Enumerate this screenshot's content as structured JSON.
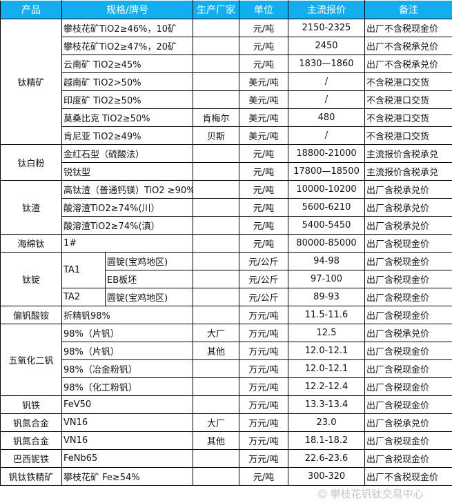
{
  "header": {
    "product": "产品",
    "spec": "规格/牌号",
    "maker": "生产厂家",
    "unit": "单位",
    "price": "主流报价",
    "note": "备注"
  },
  "groups": [
    {
      "product": "钛精矿",
      "items": [
        {
          "spec": "攀枝花矿TiO2≥46%，10矿",
          "maker": "",
          "unit": "元/吨",
          "price": "2150-2325",
          "note": "出厂不含税现金价"
        },
        {
          "spec": "攀枝花矿TiO2≥47%，20矿",
          "maker": "",
          "unit": "元/吨",
          "price": "2450",
          "note": "出厂不含税承兑价"
        },
        {
          "spec": "云南矿 TiO2≥45%",
          "maker": "",
          "unit": "元/吨",
          "price": "1830—1860",
          "note": "出厂不含税承兑价"
        },
        {
          "spec": "越南矿 TiO2>50%",
          "maker": "",
          "unit": "美元/吨",
          "price": "/",
          "note": "不含税港口交货"
        },
        {
          "spec": "印度矿 TiO2≥50%",
          "maker": "",
          "unit": "美元/吨",
          "price": "/",
          "note": "不含税港口交货"
        },
        {
          "spec": "莫桑比克 TiO2≥50%",
          "maker": "肯梅尔",
          "unit": "美元/吨",
          "price": "480",
          "note": "不含税港口交货"
        },
        {
          "spec": "肯尼亚 TiO2≥49%",
          "maker": "贝斯",
          "unit": "美元/吨",
          "price": "/",
          "note": "不含税港口交货"
        }
      ]
    },
    {
      "product": "钛白粉",
      "items": [
        {
          "spec": "金红石型（硫酸法）",
          "unit": "元/吨",
          "price": "18800-21000",
          "note": "主流报价含税承兑"
        },
        {
          "spec": "锐钛型",
          "unit": "元/吨",
          "price": "17800—18500",
          "note": "主流报价含税承兑"
        }
      ]
    },
    {
      "product": "钛渣",
      "items": [
        {
          "spec": "高钛渣（普通钙镁）TiO2 ≥90%",
          "unit": "元/吨",
          "price": "10000-10200",
          "note": "出厂含税承兑价"
        },
        {
          "spec": "酸溶渣TiO2≥74%(川）",
          "unit": "元/吨",
          "price": "5600-6210",
          "note": "出厂含税承兑价"
        },
        {
          "spec": "酸溶渣TiO2≥74%(滇）",
          "unit": "元/吨",
          "price": "5400-5450",
          "note": "出厂含税承兑价"
        }
      ]
    },
    {
      "product": "海绵钛",
      "items": [
        {
          "spec": "1#",
          "unit": "元/吨",
          "price": "80000-85000",
          "note": "出厂含税现金价"
        }
      ]
    },
    {
      "product": "钛锭",
      "items": [
        {
          "grade": "TA1",
          "spec": "圆锭(宝鸡地区)",
          "unit": "元/公斤",
          "price": "94-98",
          "note": "出厂含税现金价"
        },
        {
          "spec": "EB板坯",
          "unit": "元/公斤",
          "price": "97-100",
          "note": "出厂含税现金价"
        },
        {
          "grade": "TA2",
          "spec": "圆锭(宝鸡地区)",
          "unit": "元/公斤",
          "price": "89-93",
          "note": "出厂含税现金价"
        }
      ]
    },
    {
      "product": "偏钒酸铵",
      "items": [
        {
          "spec": "折精钒98%",
          "unit": "万元/吨",
          "price": "11.5-11.6",
          "note": "出厂含税现金价"
        }
      ]
    },
    {
      "product": "五氧化二钒",
      "items": [
        {
          "spec": "98%（片钒）",
          "maker": "大厂",
          "unit": "万元/吨",
          "price": "12.5",
          "note": "出厂含税承兑价"
        },
        {
          "spec": "98%（片钒）",
          "maker": "其他",
          "unit": "万元/吨",
          "price": "12.0-12.1",
          "note": "出厂含税现金价"
        },
        {
          "spec": "98%（冶金粉钒）",
          "unit": "万元/吨",
          "price": "12.0-12.1",
          "note": "出厂含税现金价"
        },
        {
          "spec": "98%（化工粉钒）",
          "unit": "万元/吨",
          "price": "12.2-12.4",
          "note": "出厂含税现金价"
        }
      ]
    },
    {
      "product": "钒铁",
      "items": [
        {
          "spec": "FeV50",
          "unit": "万元/吨",
          "price": "13.3-13.4",
          "note": "出厂含税现金价"
        }
      ]
    },
    {
      "product": "钒氮合金",
      "items": [
        {
          "spec": "VN16",
          "maker": "大厂",
          "unit": "万元/吨",
          "price": "23.0",
          "note": "出厂含税承兑价"
        }
      ]
    },
    {
      "product": "钒氮合金",
      "items": [
        {
          "spec": "VN16",
          "maker": "其他",
          "unit": "万元/吨",
          "price": "18.1-18.2",
          "note": "出厂含税现金价"
        }
      ]
    },
    {
      "product": "巴西铌铁",
      "items": [
        {
          "spec": "FeNb65",
          "unit": "万元/吨",
          "price": "22.6-23.6",
          "note": "出厂含税现金价"
        }
      ]
    },
    {
      "product": "钒钛铁精矿",
      "items": [
        {
          "spec": "攀枝花矿 Fe≥54%",
          "unit": "元/吨",
          "price": "300-320",
          "note": "出厂不含税现金价"
        }
      ]
    }
  ],
  "watermark": {
    "text": "攀枝花钒钛交易中心",
    "icon": "wechat-icon"
  },
  "colors": {
    "header_bg": "#12aef0"
  }
}
